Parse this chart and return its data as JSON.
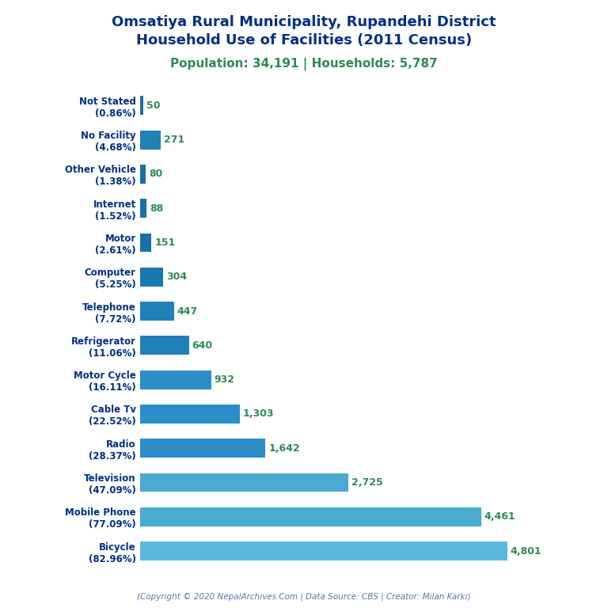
{
  "title_line1": "Omsatiya Rural Municipality, Rupandehi District",
  "title_line2": "Household Use of Facilities (2011 Census)",
  "subtitle": "Population: 34,191 | Households: 5,787",
  "footer": "(Copyright © 2020 NepalArchives.Com | Data Source: CBS | Creator: Milan Karki)",
  "categories": [
    "Not Stated\n(0.86%)",
    "No Facility\n(4.68%)",
    "Other Vehicle\n(1.38%)",
    "Internet\n(1.52%)",
    "Motor\n(2.61%)",
    "Computer\n(5.25%)",
    "Telephone\n(7.72%)",
    "Refrigerator\n(11.06%)",
    "Motor Cycle\n(16.11%)",
    "Cable Tv\n(22.52%)",
    "Radio\n(28.37%)",
    "Television\n(47.09%)",
    "Mobile Phone\n(77.09%)",
    "Bicycle\n(82.96%)"
  ],
  "values": [
    50,
    271,
    80,
    88,
    151,
    304,
    447,
    640,
    932,
    1303,
    1642,
    2725,
    4461,
    4801
  ],
  "bar_colors": [
    "#1a6fa3",
    "#2080b8",
    "#1a6fa3",
    "#1a6fa3",
    "#1a6fa3",
    "#1a78b0",
    "#2080b8",
    "#2080b8",
    "#2b8ec8",
    "#2b8ec8",
    "#2b8ec8",
    "#4aaad0",
    "#4aaad0",
    "#5ab8de"
  ],
  "title_color": "#003087",
  "subtitle_color": "#2e8b57",
  "value_color": "#2e8b57",
  "ylabel_color": "#003087",
  "footer_color": "#5577aa",
  "bg_color": "#ffffff",
  "xlim": [
    0,
    5400
  ],
  "bar_height": 0.55
}
